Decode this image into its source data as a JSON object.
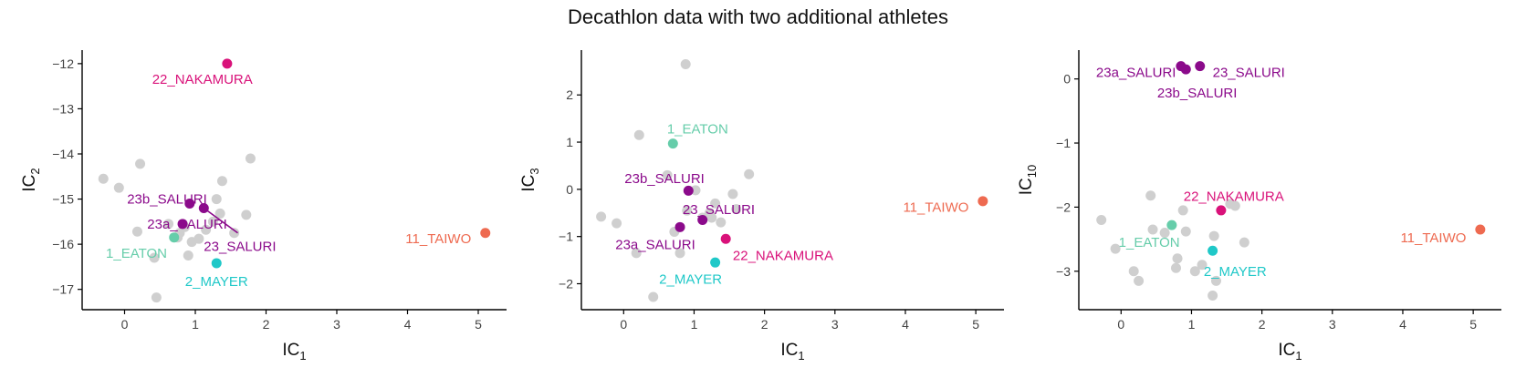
{
  "title": "Decathlon data with two additional athletes",
  "colors": {
    "grey": "#cfcfcf",
    "eaton": "#66cdaa",
    "mayer": "#1fc8c8",
    "nakamura": "#d9127a",
    "saluri": "#8b0a8b",
    "taiwo": "#ee6a50",
    "axis": "#000000",
    "tick_text": "#444444"
  },
  "chart_data": [
    {
      "type": "scatter",
      "xlabel": "IC",
      "xlabel_sub": "1",
      "ylabel": "IC",
      "ylabel_sub": "2",
      "xlim": [
        -0.6,
        5.4
      ],
      "ylim": [
        -17.45,
        -11.7
      ],
      "xticks": [
        0,
        1,
        2,
        3,
        4,
        5
      ],
      "yticks": [
        -17,
        -16,
        -15,
        -14,
        -13,
        -12
      ],
      "background_points": [
        [
          -0.3,
          -14.55
        ],
        [
          -0.08,
          -14.75
        ],
        [
          0.22,
          -14.22
        ],
        [
          0.18,
          -15.72
        ],
        [
          0.42,
          -16.3
        ],
        [
          0.45,
          -17.18
        ],
        [
          0.75,
          -15.85
        ],
        [
          0.78,
          -15.75
        ],
        [
          0.85,
          -15.62
        ],
        [
          0.95,
          -15.95
        ],
        [
          1.05,
          -15.88
        ],
        [
          1.25,
          -15.5
        ],
        [
          1.3,
          -15.0
        ],
        [
          1.35,
          -15.32
        ],
        [
          1.38,
          -14.6
        ],
        [
          1.55,
          -15.75
        ],
        [
          1.72,
          -15.35
        ],
        [
          1.78,
          -14.1
        ],
        [
          1.15,
          -15.68
        ],
        [
          0.62,
          -15.55
        ],
        [
          0.9,
          -16.25
        ]
      ],
      "highlighted": [
        {
          "id": "eaton",
          "label": "1_EATON",
          "x": 0.7,
          "y": -15.85,
          "color_key": "eaton"
        },
        {
          "id": "mayer",
          "label": "2_MAYER",
          "x": 1.3,
          "y": -16.42,
          "color_key": "mayer"
        },
        {
          "id": "nakamura",
          "label": "22_NAKAMURA",
          "x": 1.45,
          "y": -12.0,
          "color_key": "nakamura"
        },
        {
          "id": "saluri23",
          "label": "23_SALURI",
          "x": 1.12,
          "y": -15.2,
          "color_key": "saluri"
        },
        {
          "id": "saluri23a",
          "label": "23a_SALURI",
          "x": 0.82,
          "y": -15.55,
          "color_key": "saluri"
        },
        {
          "id": "saluri23b",
          "label": "23b_SALURI",
          "x": 0.92,
          "y": -15.1,
          "color_key": "saluri"
        },
        {
          "id": "taiwo",
          "label": "11_TAIWO",
          "x": 5.1,
          "y": -15.75,
          "color_key": "taiwo"
        }
      ],
      "label_anchors": [
        {
          "id": "eaton",
          "x": 0.6,
          "y": -16.2,
          "anchor": "end"
        },
        {
          "id": "mayer",
          "x": 1.3,
          "y": -16.82,
          "anchor": "middle"
        },
        {
          "id": "nakamura",
          "x": 1.1,
          "y": -12.35,
          "anchor": "middle"
        },
        {
          "id": "saluri23",
          "x": 1.12,
          "y": -16.05,
          "anchor": "start"
        },
        {
          "id": "saluri23a",
          "x": 0.32,
          "y": -15.55,
          "anchor": "start"
        },
        {
          "id": "saluri23b",
          "x": 0.6,
          "y": -15.0,
          "anchor": "middle"
        },
        {
          "id": "taiwo",
          "x": 4.9,
          "y": -15.88,
          "anchor": "end"
        }
      ],
      "connector": {
        "from": [
          1.12,
          -15.2
        ],
        "to": [
          1.6,
          -15.75
        ],
        "color_key": "saluri"
      }
    },
    {
      "type": "scatter",
      "xlabel": "IC",
      "xlabel_sub": "1",
      "ylabel": "IC",
      "ylabel_sub": "3",
      "xlim": [
        -0.6,
        5.4
      ],
      "ylim": [
        -2.55,
        2.95
      ],
      "xticks": [
        0,
        1,
        2,
        3,
        4,
        5
      ],
      "yticks": [
        -2,
        -1,
        0,
        1,
        2
      ],
      "background_points": [
        [
          -0.32,
          -0.58
        ],
        [
          -0.1,
          -0.72
        ],
        [
          0.22,
          1.15
        ],
        [
          0.18,
          -1.35
        ],
        [
          0.42,
          -2.28
        ],
        [
          0.88,
          2.65
        ],
        [
          0.62,
          0.3
        ],
        [
          1.02,
          -0.02
        ],
        [
          0.9,
          -0.45
        ],
        [
          1.12,
          -0.6
        ],
        [
          1.22,
          -0.5
        ],
        [
          1.3,
          -0.3
        ],
        [
          1.38,
          -0.7
        ],
        [
          1.55,
          -0.1
        ],
        [
          1.6,
          -0.42
        ],
        [
          1.78,
          0.32
        ],
        [
          0.8,
          -1.35
        ],
        [
          0.72,
          -0.9
        ],
        [
          1.25,
          -0.6
        ]
      ],
      "highlighted": [
        {
          "id": "eaton",
          "label": "1_EATON",
          "x": 0.7,
          "y": 0.97,
          "color_key": "eaton"
        },
        {
          "id": "mayer",
          "label": "2_MAYER",
          "x": 1.3,
          "y": -1.55,
          "color_key": "mayer"
        },
        {
          "id": "nakamura",
          "label": "22_NAKAMURA",
          "x": 1.45,
          "y": -1.05,
          "color_key": "nakamura"
        },
        {
          "id": "saluri23",
          "label": "23_SALURI",
          "x": 1.12,
          "y": -0.65,
          "color_key": "saluri"
        },
        {
          "id": "saluri23a",
          "label": "23a_SALURI",
          "x": 0.8,
          "y": -0.8,
          "color_key": "saluri"
        },
        {
          "id": "saluri23b",
          "label": "23b_SALURI",
          "x": 0.92,
          "y": -0.03,
          "color_key": "saluri"
        },
        {
          "id": "taiwo",
          "label": "11_TAIWO",
          "x": 5.1,
          "y": -0.25,
          "color_key": "taiwo"
        }
      ],
      "label_anchors": [
        {
          "id": "eaton",
          "x": 1.05,
          "y": 1.28,
          "anchor": "middle"
        },
        {
          "id": "mayer",
          "x": 0.95,
          "y": -1.9,
          "anchor": "middle"
        },
        {
          "id": "nakamura",
          "x": 1.55,
          "y": -1.4,
          "anchor": "start"
        },
        {
          "id": "saluri23",
          "x": 0.02,
          "y": -0.32,
          "anchor": "middle"
        },
        {
          "id": "saluri23a",
          "x": 0.45,
          "y": -1.17,
          "anchor": "middle"
        },
        {
          "id": "saluri23b",
          "x": 0.58,
          "y": 0.23,
          "anchor": "middle"
        },
        {
          "id": "taiwo",
          "x": 4.9,
          "y": -0.38,
          "anchor": "end"
        }
      ],
      "label_override_positions": {
        "saluri23": [
          1.35,
          -0.43
        ]
      }
    },
    {
      "type": "scatter",
      "xlabel": "IC",
      "xlabel_sub": "1",
      "ylabel": "IC",
      "ylabel_sub": "10",
      "xlim": [
        -0.6,
        5.4
      ],
      "ylim": [
        -3.6,
        0.45
      ],
      "xticks": [
        0,
        1,
        2,
        3,
        4,
        5
      ],
      "yticks": [
        -3,
        -2,
        -1,
        0
      ],
      "background_points": [
        [
          -0.28,
          -2.2
        ],
        [
          -0.08,
          -2.65
        ],
        [
          0.18,
          -3.0
        ],
        [
          0.25,
          -3.15
        ],
        [
          0.42,
          -1.82
        ],
        [
          0.45,
          -2.35
        ],
        [
          0.62,
          -2.4
        ],
        [
          0.8,
          -2.8
        ],
        [
          0.78,
          -2.95
        ],
        [
          0.88,
          -2.05
        ],
        [
          0.92,
          -2.38
        ],
        [
          1.05,
          -3.0
        ],
        [
          1.15,
          -2.9
        ],
        [
          1.3,
          -3.38
        ],
        [
          1.32,
          -2.45
        ],
        [
          1.35,
          -3.15
        ],
        [
          1.55,
          -1.95
        ],
        [
          1.62,
          -1.98
        ],
        [
          1.75,
          -2.55
        ]
      ],
      "highlighted": [
        {
          "id": "eaton",
          "label": "1_EATON",
          "x": 0.72,
          "y": -2.28,
          "color_key": "eaton"
        },
        {
          "id": "mayer",
          "label": "2_MAYER",
          "x": 1.3,
          "y": -2.68,
          "color_key": "mayer"
        },
        {
          "id": "nakamura",
          "label": "22_NAKAMURA",
          "x": 1.42,
          "y": -2.05,
          "color_key": "nakamura"
        },
        {
          "id": "saluri23",
          "label": "23_SALURI",
          "x": 1.12,
          "y": 0.2,
          "color_key": "saluri"
        },
        {
          "id": "saluri23a",
          "label": "23a_SALURI",
          "x": 0.85,
          "y": 0.2,
          "color_key": "saluri"
        },
        {
          "id": "saluri23b",
          "label": "23b_SALURI",
          "x": 0.92,
          "y": 0.15,
          "color_key": "saluri"
        },
        {
          "id": "taiwo",
          "label": "11_TAIWO",
          "x": 5.1,
          "y": -2.35,
          "color_key": "taiwo"
        }
      ],
      "label_anchors": [
        {
          "id": "eaton",
          "x": 0.4,
          "y": -2.55,
          "anchor": "middle"
        },
        {
          "id": "mayer",
          "x": 1.62,
          "y": -3.0,
          "anchor": "middle"
        },
        {
          "id": "nakamura",
          "x": 1.6,
          "y": -1.83,
          "anchor": "middle"
        },
        {
          "id": "saluri23",
          "x": 1.3,
          "y": 0.1,
          "anchor": "start"
        },
        {
          "id": "saluri23a",
          "x": 0.78,
          "y": 0.1,
          "anchor": "end"
        },
        {
          "id": "saluri23b",
          "x": 1.08,
          "y": -0.22,
          "anchor": "middle"
        },
        {
          "id": "taiwo",
          "x": 4.9,
          "y": -2.48,
          "anchor": "end"
        }
      ]
    }
  ]
}
